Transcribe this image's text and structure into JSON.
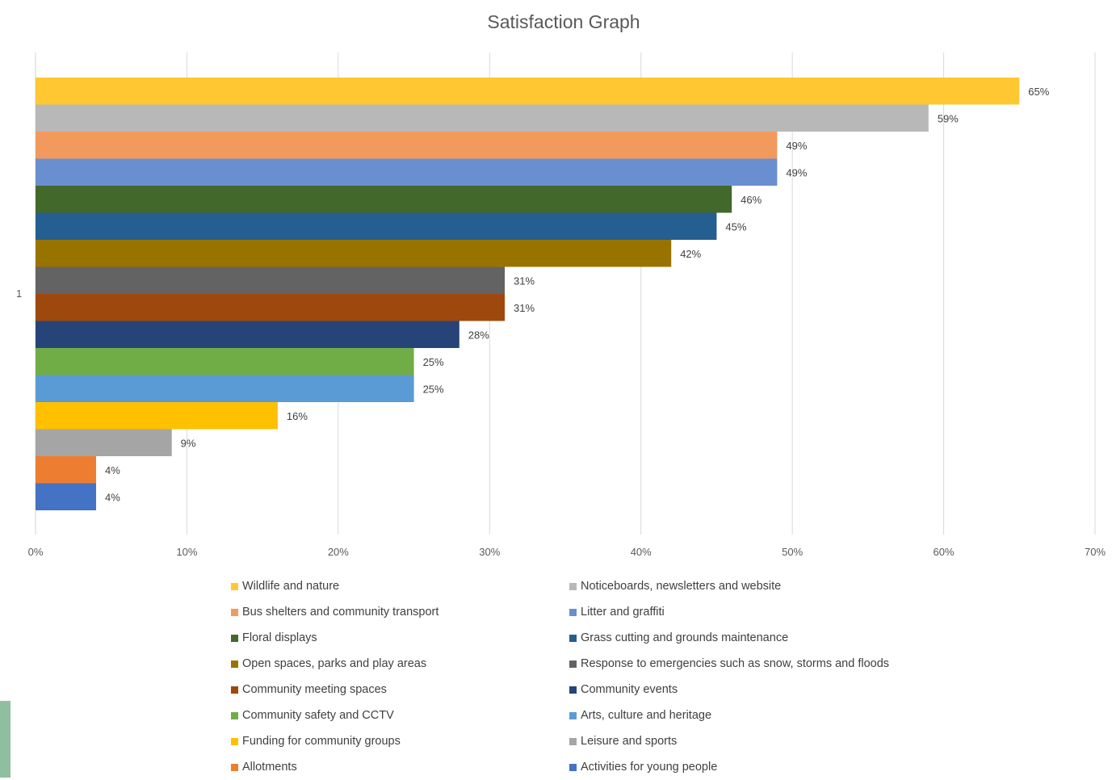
{
  "chart_data": {
    "type": "bar",
    "orientation": "horizontal",
    "title": "Satisfaction Graph",
    "category_label": "1",
    "xlim": [
      0,
      70
    ],
    "x_ticks": [
      "0%",
      "10%",
      "20%",
      "30%",
      "40%",
      "50%",
      "60%",
      "70%"
    ],
    "grid": true,
    "legend_position": "bottom",
    "series": [
      {
        "name": "Wildlife and nature",
        "value": 65,
        "label": "65%",
        "color": "#FFC832"
      },
      {
        "name": "Noticeboards, newsletters and website",
        "value": 59,
        "label": "59%",
        "color": "#B8B8B8"
      },
      {
        "name": "Bus shelters and community transport",
        "value": 49,
        "label": "49%",
        "color": "#F29A5E"
      },
      {
        "name": "Litter and graffiti",
        "value": 49,
        "label": "49%",
        "color": "#6A8FD0"
      },
      {
        "name": "Floral displays",
        "value": 46,
        "label": "46%",
        "color": "#43682B"
      },
      {
        "name": "Grass cutting and grounds maintenance",
        "value": 45,
        "label": "45%",
        "color": "#255E91"
      },
      {
        "name": "Open spaces, parks and play areas",
        "value": 42,
        "label": "42%",
        "color": "#997300"
      },
      {
        "name": "Response to emergencies such as snow, storms and floods",
        "value": 31,
        "label": "31%",
        "color": "#636363"
      },
      {
        "name": "Community meeting spaces",
        "value": 31,
        "label": "31%",
        "color": "#9E480E"
      },
      {
        "name": "Community events",
        "value": 28,
        "label": "28%",
        "color": "#264478"
      },
      {
        "name": "Community safety and CCTV",
        "value": 25,
        "label": "25%",
        "color": "#70AD47"
      },
      {
        "name": "Arts, culture and heritage",
        "value": 25,
        "label": "25%",
        "color": "#5B9BD5"
      },
      {
        "name": "Funding for community groups",
        "value": 16,
        "label": "16%",
        "color": "#FFC000"
      },
      {
        "name": "Leisure and sports",
        "value": 9,
        "label": "9%",
        "color": "#A5A5A5"
      },
      {
        "name": "Allotments",
        "value": 4,
        "label": "4%",
        "color": "#ED7D31"
      },
      {
        "name": "Activities for young people",
        "value": 4,
        "label": "4%",
        "color": "#4472C4"
      }
    ]
  }
}
